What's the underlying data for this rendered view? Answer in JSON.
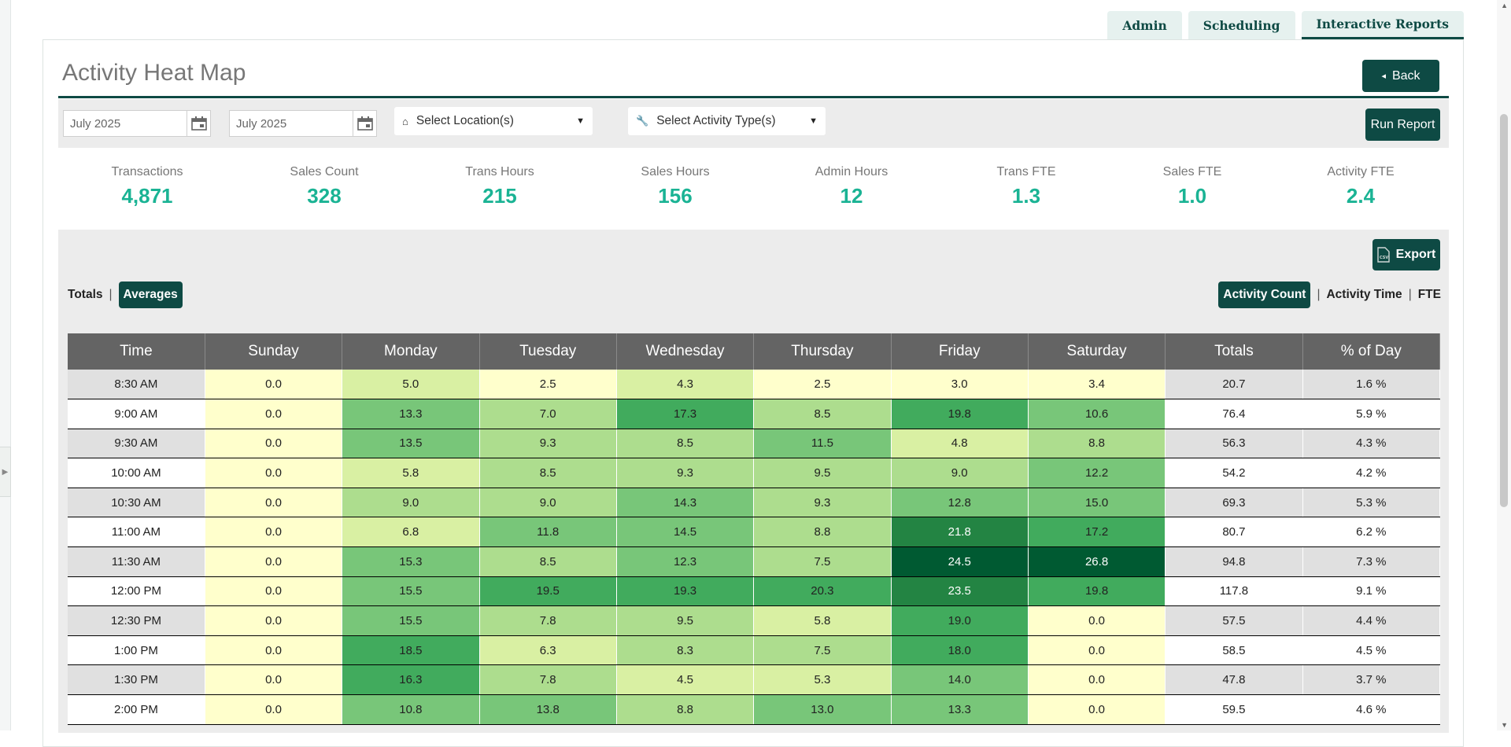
{
  "tabs": [
    {
      "label": "Admin"
    },
    {
      "label": "Scheduling"
    },
    {
      "label": "Interactive Reports"
    }
  ],
  "page": {
    "title": "Activity Heat Map",
    "back_label": "Back"
  },
  "filters": {
    "start_date": "July 2025",
    "end_date": "July 2025",
    "location_placeholder": "Select Location(s)",
    "activity_placeholder": "Select Activity Type(s)",
    "run_label": "Run Report"
  },
  "stats": [
    {
      "label": "Transactions",
      "value": "4,871"
    },
    {
      "label": "Sales Count",
      "value": "328"
    },
    {
      "label": "Trans Hours",
      "value": "215"
    },
    {
      "label": "Sales Hours",
      "value": "156"
    },
    {
      "label": "Admin Hours",
      "value": "12"
    },
    {
      "label": "Trans FTE",
      "value": "1.3"
    },
    {
      "label": "Sales FTE",
      "value": "1.0"
    },
    {
      "label": "Activity FTE",
      "value": "2.4"
    }
  ],
  "controls": {
    "export_label": "Export",
    "totals_label": "Totals",
    "averages_label": "Averages",
    "activity_count_label": "Activity Count",
    "activity_time_label": "Activity Time",
    "fte_label": "FTE",
    "separator": "|"
  },
  "table": {
    "headers": [
      "Time",
      "Sunday",
      "Monday",
      "Tuesday",
      "Wednesday",
      "Thursday",
      "Friday",
      "Saturday",
      "Totals",
      "% of Day"
    ],
    "rows": [
      {
        "time": "8:30 AM",
        "days": [
          "0.0",
          "5.0",
          "2.5",
          "4.3",
          "2.5",
          "3.0",
          "3.4"
        ],
        "total": "20.7",
        "pct": "1.6 %"
      },
      {
        "time": "9:00 AM",
        "days": [
          "0.0",
          "13.3",
          "7.0",
          "17.3",
          "8.5",
          "19.8",
          "10.6"
        ],
        "total": "76.4",
        "pct": "5.9 %"
      },
      {
        "time": "9:30 AM",
        "days": [
          "0.0",
          "13.5",
          "9.3",
          "8.5",
          "11.5",
          "4.8",
          "8.8"
        ],
        "total": "56.3",
        "pct": "4.3 %"
      },
      {
        "time": "10:00 AM",
        "days": [
          "0.0",
          "5.8",
          "8.5",
          "9.3",
          "9.5",
          "9.0",
          "12.2"
        ],
        "total": "54.2",
        "pct": "4.2 %"
      },
      {
        "time": "10:30 AM",
        "days": [
          "0.0",
          "9.0",
          "9.0",
          "14.3",
          "9.3",
          "12.8",
          "15.0"
        ],
        "total": "69.3",
        "pct": "5.3 %"
      },
      {
        "time": "11:00 AM",
        "days": [
          "0.0",
          "6.8",
          "11.8",
          "14.5",
          "8.8",
          "21.8",
          "17.2"
        ],
        "total": "80.7",
        "pct": "6.2 %"
      },
      {
        "time": "11:30 AM",
        "days": [
          "0.0",
          "15.3",
          "8.5",
          "12.3",
          "7.5",
          "24.5",
          "26.8"
        ],
        "total": "94.8",
        "pct": "7.3 %"
      },
      {
        "time": "12:00 PM",
        "days": [
          "0.0",
          "15.5",
          "19.5",
          "19.3",
          "20.3",
          "23.5",
          "19.8"
        ],
        "total": "117.8",
        "pct": "9.1 %"
      },
      {
        "time": "12:30 PM",
        "days": [
          "0.0",
          "15.5",
          "7.8",
          "9.5",
          "5.8",
          "19.0",
          "0.0"
        ],
        "total": "57.5",
        "pct": "4.4 %"
      },
      {
        "time": "1:00 PM",
        "days": [
          "0.0",
          "18.5",
          "6.3",
          "8.3",
          "7.5",
          "18.0",
          "0.0"
        ],
        "total": "58.5",
        "pct": "4.5 %"
      },
      {
        "time": "1:30 PM",
        "days": [
          "0.0",
          "16.3",
          "7.8",
          "4.5",
          "5.3",
          "14.0",
          "0.0"
        ],
        "total": "47.8",
        "pct": "3.7 %"
      },
      {
        "time": "2:00 PM",
        "days": [
          "0.0",
          "10.8",
          "13.8",
          "8.8",
          "13.0",
          "13.3",
          "0.0"
        ],
        "total": "59.5",
        "pct": "4.6 %"
      }
    ]
  },
  "heat_colors": [
    "#ffffcc",
    "#d9f0a3",
    "#addd8e",
    "#78c679",
    "#41ab5d",
    "#238443",
    "#005a32"
  ]
}
